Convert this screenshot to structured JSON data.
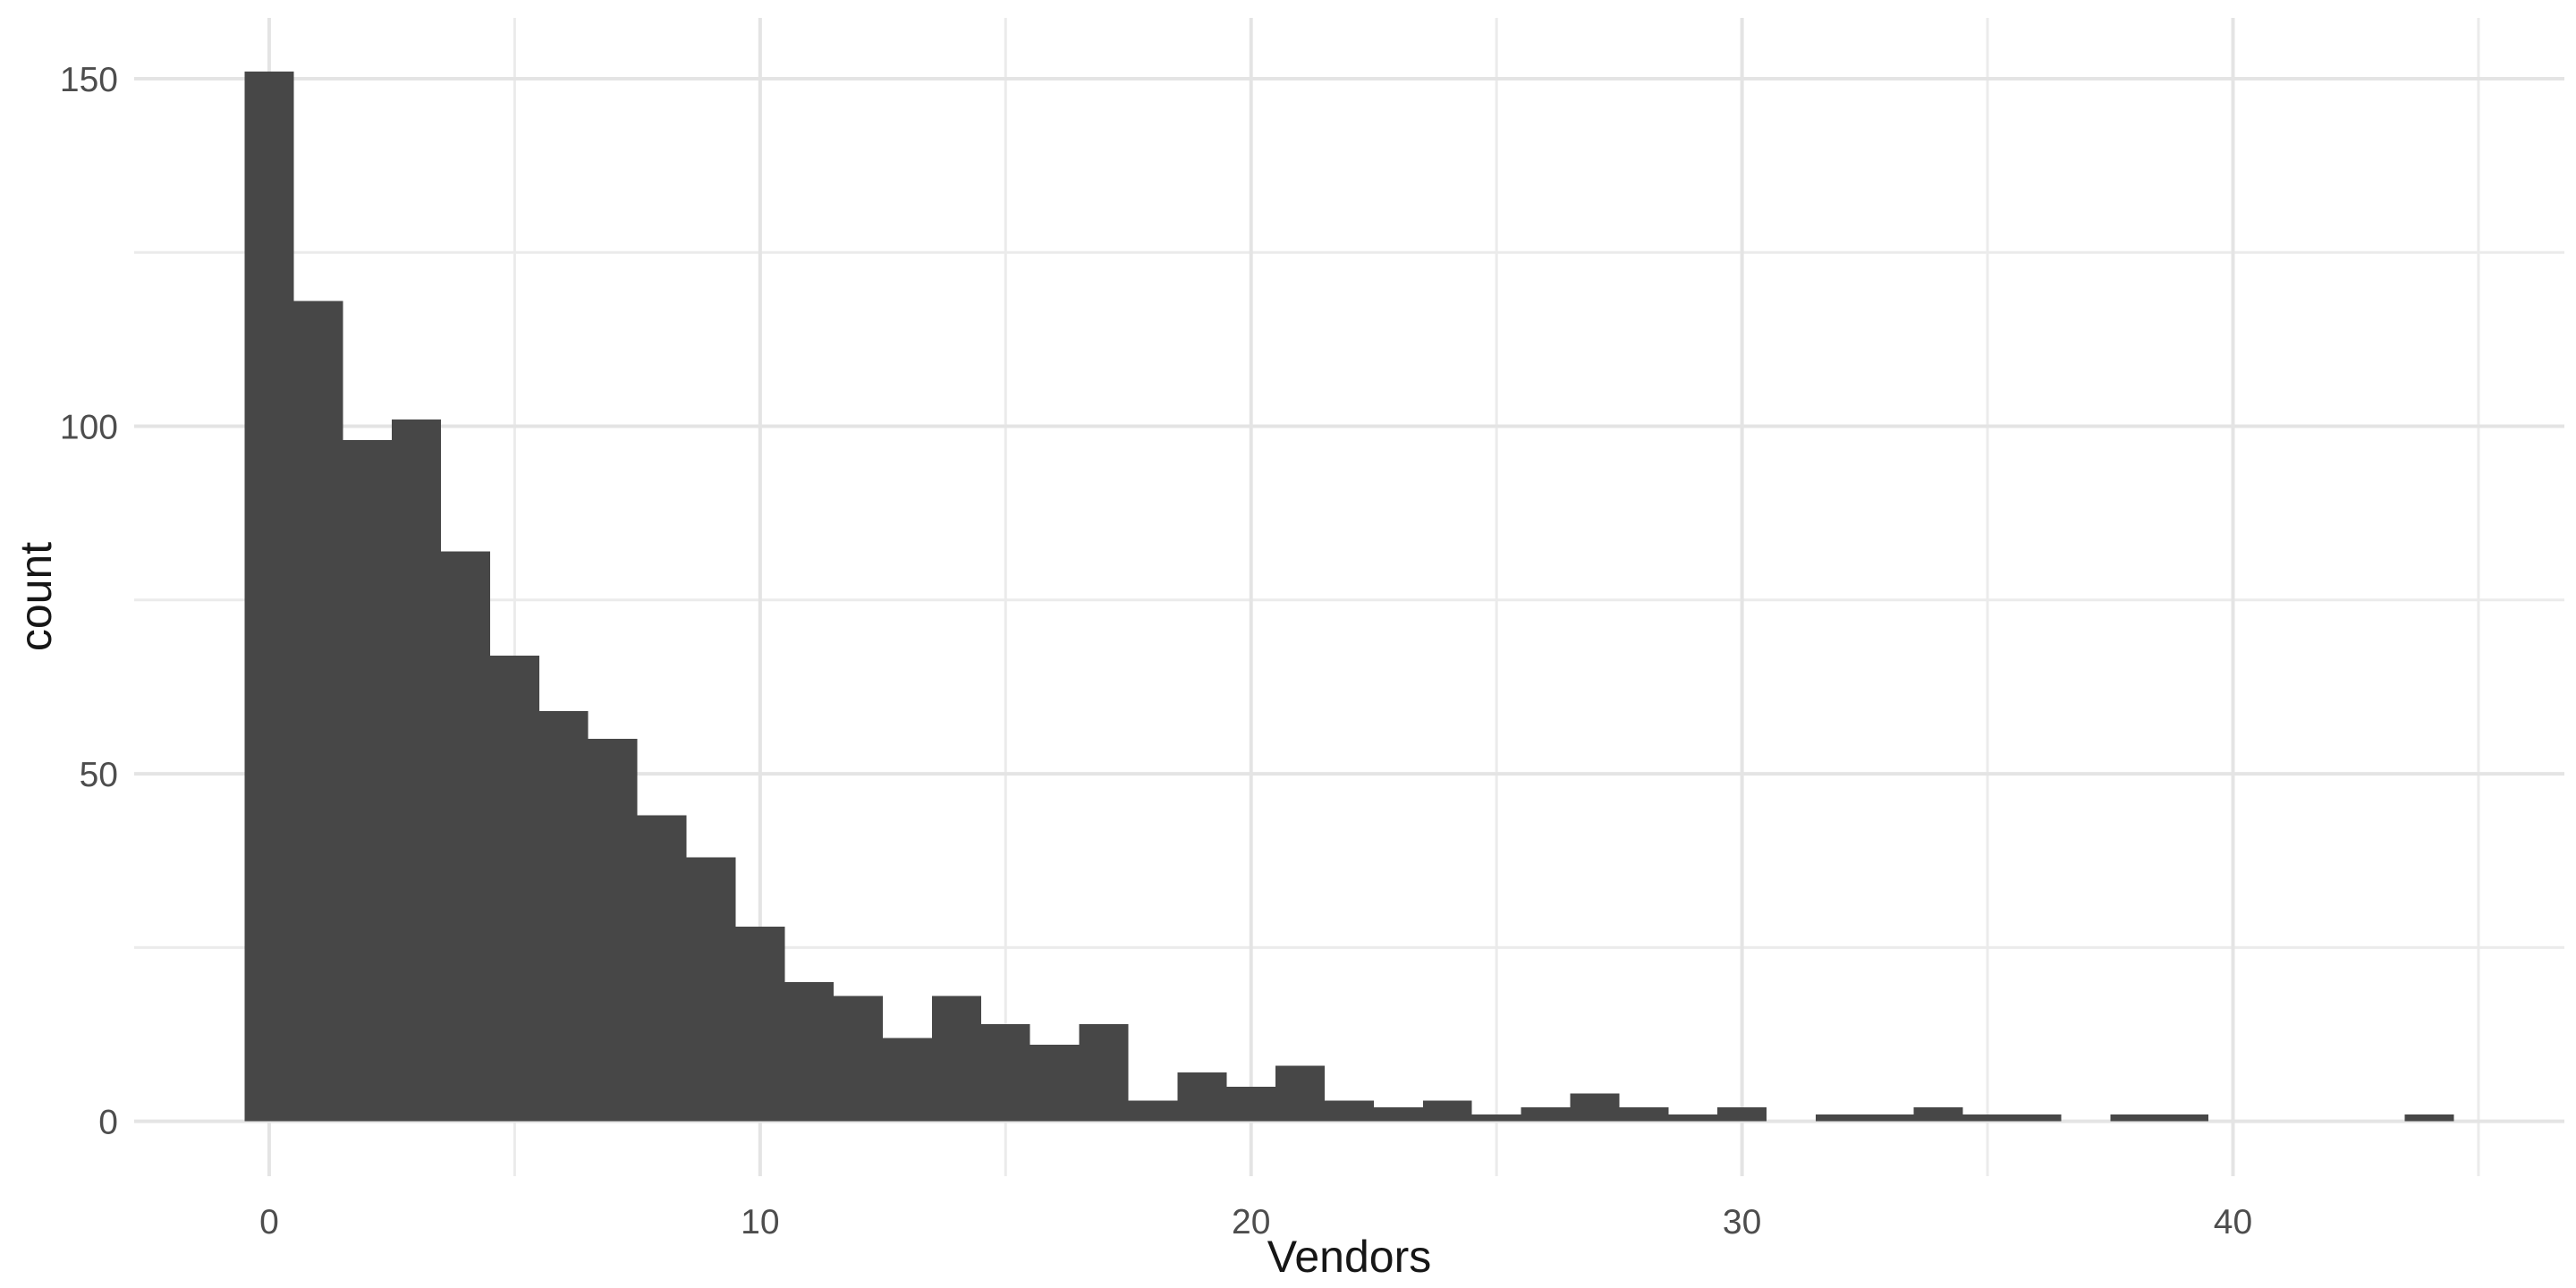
{
  "figure": {
    "background": "#FFFFFF"
  },
  "chart_data": {
    "type": "bar",
    "subtype": "histogram",
    "title": "",
    "xlabel": "Vendors",
    "ylabel": "count",
    "bin_width": 1,
    "bin_centers": [
      0,
      1,
      2,
      3,
      4,
      5,
      6,
      7,
      8,
      9,
      10,
      11,
      12,
      13,
      14,
      15,
      16,
      17,
      18,
      19,
      20,
      21,
      22,
      23,
      24,
      25,
      26,
      27,
      28,
      29,
      30,
      31,
      32,
      33,
      34,
      35,
      36,
      37,
      38,
      39,
      40,
      41,
      42,
      43,
      44
    ],
    "counts": [
      151,
      118,
      98,
      101,
      82,
      67,
      59,
      55,
      44,
      38,
      28,
      20,
      18,
      12,
      18,
      14,
      11,
      14,
      3,
      7,
      5,
      8,
      3,
      2,
      3,
      1,
      2,
      4,
      2,
      1,
      2,
      0,
      1,
      1,
      2,
      1,
      1,
      0,
      1,
      1,
      0,
      0,
      0,
      0,
      1
    ],
    "x_ticks": [
      0,
      10,
      20,
      30,
      40
    ],
    "x_minor_ticks": [
      5,
      15,
      25,
      35,
      45
    ],
    "y_ticks": [
      0,
      50,
      100,
      150
    ],
    "y_minor_ticks": [
      25,
      75,
      125
    ],
    "xlim": [
      -2.75,
      46.75
    ],
    "ylim": [
      -7.9,
      158.75
    ],
    "grid": "major and minor gridlines, light grey on white, no axis lines, no tick marks (minimal ggplot theme)",
    "legend": "none",
    "colors": {
      "bar_fill": "#474747",
      "grid_major": "#E4E4E4",
      "grid_minor": "#EBEBEB",
      "tick_label": "#4D4D4D",
      "axis_title": "#161616",
      "background": "#FFFFFF"
    }
  }
}
